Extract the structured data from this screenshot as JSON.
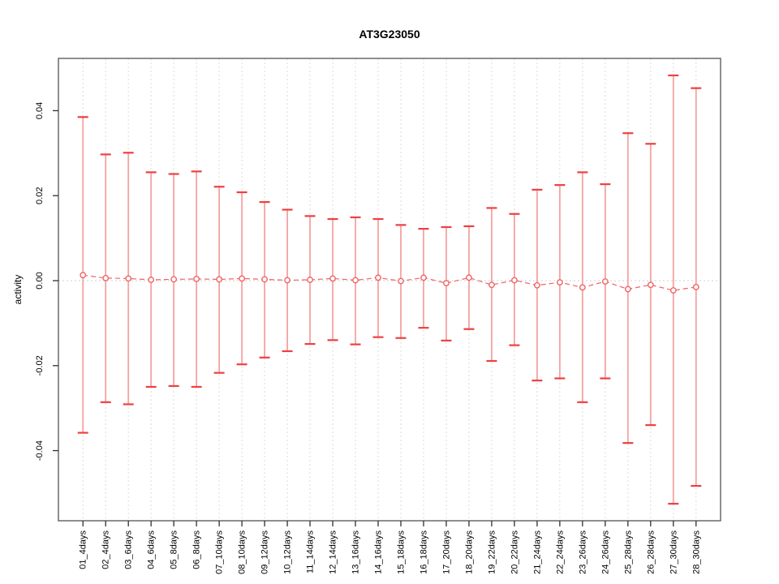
{
  "chart_data": {
    "type": "scatter",
    "title": "AT3G23050",
    "ylabel": "activity",
    "xlabel": "",
    "legend_position": "none",
    "grid": "vertical dotted gridlines per category plus dotted zero line",
    "categories": [
      "01_4days",
      "02_4days",
      "03_6days",
      "04_6days",
      "05_8days",
      "06_8days",
      "07_10days",
      "08_10days",
      "09_12days",
      "10_12days",
      "11_14days",
      "12_14days",
      "13_16days",
      "14_16days",
      "15_18days",
      "16_18days",
      "17_20days",
      "18_20days",
      "19_22days",
      "20_22days",
      "21_24days",
      "22_24days",
      "23_26days",
      "24_26days",
      "25_28days",
      "26_28days",
      "27_30days",
      "28_30days"
    ],
    "series": [
      {
        "name": "activity",
        "marker": "open-circle",
        "line_style": "dashed",
        "centers": [
          0.0013,
          0.0006,
          0.0005,
          0.0002,
          0.0003,
          0.0004,
          0.0003,
          0.0005,
          0.0003,
          0.0001,
          0.0002,
          0.0005,
          0.0001,
          0.0007,
          -0.0001,
          0.0007,
          -0.0006,
          0.0007,
          -0.001,
          0.0001,
          -0.0011,
          -0.0004,
          -0.0016,
          -0.0002,
          -0.002,
          -0.001,
          -0.0023,
          -0.0015
        ],
        "upper": [
          0.0385,
          0.0297,
          0.0301,
          0.0255,
          0.0251,
          0.0257,
          0.0221,
          0.0208,
          0.0185,
          0.0167,
          0.0152,
          0.0145,
          0.0149,
          0.0145,
          0.0131,
          0.0122,
          0.0126,
          0.0128,
          0.0171,
          0.0157,
          0.0214,
          0.0225,
          0.0255,
          0.0227,
          0.0347,
          0.0322,
          0.0483,
          0.0453
        ],
        "lower": [
          -0.0358,
          -0.0286,
          -0.0291,
          -0.025,
          -0.0248,
          -0.025,
          -0.0217,
          -0.0197,
          -0.0181,
          -0.0166,
          -0.0149,
          -0.014,
          -0.015,
          -0.0133,
          -0.0135,
          -0.0111,
          -0.0141,
          -0.0114,
          -0.0189,
          -0.0152,
          -0.0235,
          -0.023,
          -0.0286,
          -0.023,
          -0.0382,
          -0.034,
          -0.0525,
          -0.0483
        ]
      }
    ],
    "ylim": [
      -0.0565,
      0.0523
    ],
    "yticks": [
      -0.04,
      -0.02,
      0,
      0.02,
      0.04
    ],
    "ytick_labels": [
      "-0.04",
      "-0.02",
      "0.00",
      "0.02",
      "0.04"
    ],
    "colors": {
      "point": "#f06464",
      "bar_line": "#f5a2a2",
      "cap": "#ee4040",
      "connector": "#f06464",
      "gridline": "#dcdcdc",
      "zero_line": "#cfcfcf",
      "axis_box": "#5f5f5f",
      "tick": "#2f2f2f",
      "text": "#000000"
    }
  }
}
